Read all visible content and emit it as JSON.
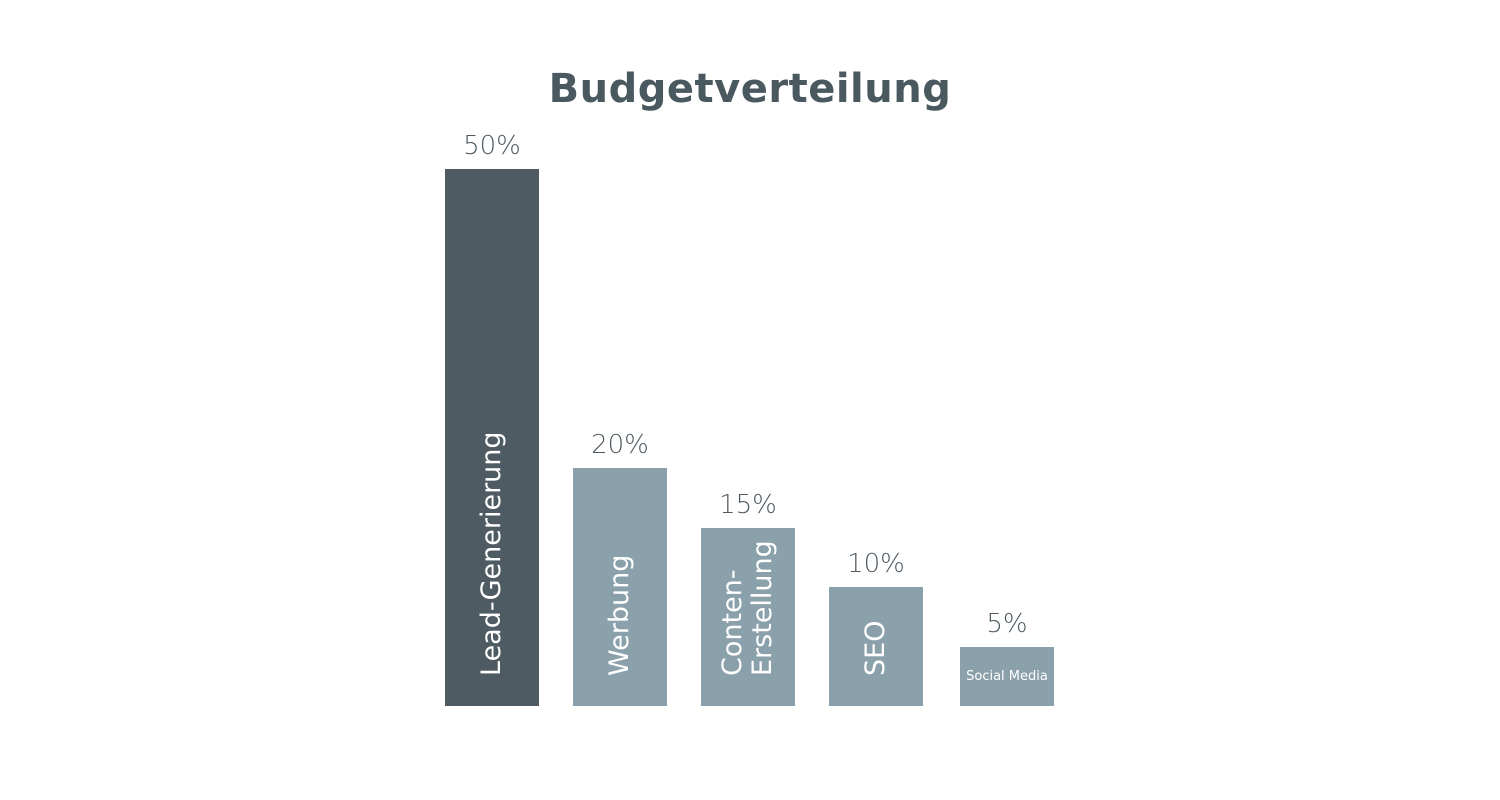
{
  "chart_data": {
    "type": "bar",
    "title": "Budgetverteilung",
    "categories": [
      "Lead-Generierung",
      "Werbung",
      "Conten-\nErstellung",
      "SEO",
      "Social Media"
    ],
    "values": [
      50,
      20,
      15,
      10,
      5
    ],
    "value_labels": [
      "50%",
      "20%",
      "15%",
      "10%",
      "5%"
    ],
    "colors": [
      "#4f5b62",
      "#8aa0ab",
      "#8aa0ab",
      "#8aa0ab",
      "#8aa0ab"
    ],
    "label_orientation": [
      "vertical",
      "vertical",
      "vertical",
      "vertical",
      "horizontal"
    ],
    "xlabel": "",
    "ylabel": "",
    "grid": false,
    "axes_visible": false
  }
}
